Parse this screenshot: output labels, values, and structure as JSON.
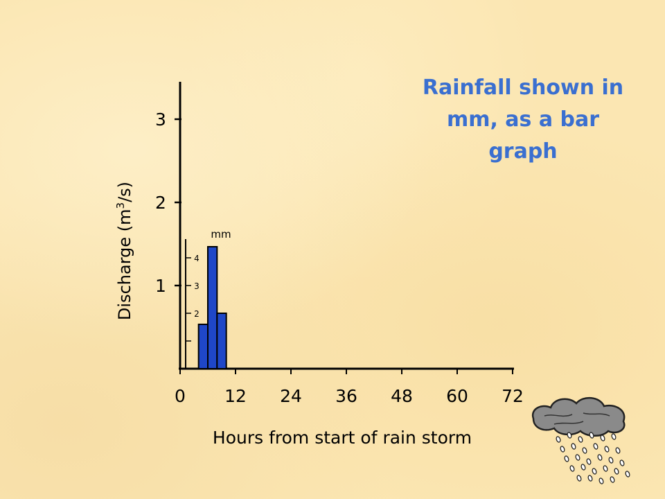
{
  "chart_data": {
    "type": "bar",
    "title": "Rainfall shown in mm, as a bar graph",
    "xlabel": "Hours from start of rain storm",
    "ylabel": "Discharge",
    "ylabel_unit_prefix": "m",
    "ylabel_unit_exp": "3",
    "ylabel_unit_suffix": "/s",
    "x_ticks": [
      "0",
      "12",
      "24",
      "36",
      "48",
      "60",
      "72"
    ],
    "xlim": [
      0,
      72
    ],
    "y_ticks": [
      "1",
      "2",
      "3"
    ],
    "ylim": [
      0,
      3.4
    ],
    "rainfall": {
      "unit_label": "mm",
      "tick_labels": [
        "2",
        "3",
        "4"
      ],
      "ylim": [
        0,
        5
      ],
      "bins": [
        {
          "start": 4,
          "end": 6,
          "value": 1.6
        },
        {
          "start": 6,
          "end": 8,
          "value": 4.4
        },
        {
          "start": 8,
          "end": 10,
          "value": 2.0
        }
      ]
    },
    "colors": {
      "bar": "#1f47c8",
      "title": "#3a6fd0"
    }
  }
}
